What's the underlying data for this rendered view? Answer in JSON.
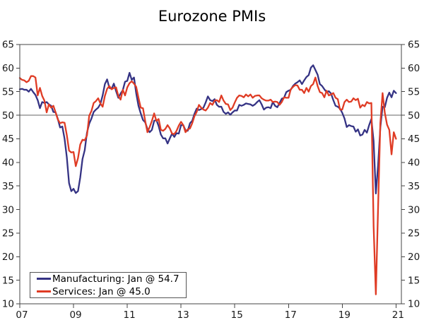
{
  "title": "Eurozone PMIs",
  "chart_data": {
    "type": "line",
    "title": "Eurozone PMIs",
    "xlabel": "",
    "ylabel": "",
    "x_start": "2007-01",
    "x_end": "2021-01",
    "x_frequency": "monthly",
    "x_tick_years": [
      2007,
      2009,
      2011,
      2013,
      2015,
      2017,
      2019,
      2021
    ],
    "x_tick_labels": [
      "07",
      "09",
      "11",
      "13",
      "15",
      "17",
      "19",
      "21"
    ],
    "ylim": [
      10,
      65
    ],
    "y_ticks": [
      10,
      15,
      20,
      25,
      30,
      35,
      40,
      45,
      50,
      55,
      60,
      65
    ],
    "y_axis_sides": "both",
    "grid": "off",
    "reference_line_y": 50,
    "legend_position": "bottom-left",
    "axis_color": "#444444",
    "reference_line_color": "#666666",
    "series": [
      {
        "name": "Manufacturing",
        "label": "Manufacturing: Jan @ 54.7",
        "color": "#353384",
        "values": [
          55.5,
          55.6,
          55.4,
          55.4,
          55.0,
          55.6,
          54.9,
          54.3,
          53.2,
          51.5,
          52.8,
          52.6,
          52.8,
          52.3,
          52.0,
          50.7,
          50.6,
          49.2,
          47.4,
          47.6,
          45.0,
          41.1,
          35.6,
          33.9,
          34.4,
          33.5,
          33.9,
          36.8,
          40.7,
          42.6,
          46.3,
          48.2,
          49.3,
          50.7,
          51.2,
          51.6,
          52.4,
          54.2,
          56.6,
          57.6,
          55.8,
          55.6,
          56.7,
          55.1,
          53.7,
          54.6,
          55.3,
          57.1,
          57.3,
          59.0,
          57.5,
          58.0,
          54.6,
          52.0,
          50.4,
          49.0,
          48.5,
          47.1,
          46.4,
          46.9,
          48.8,
          49.0,
          47.7,
          45.9,
          45.1,
          45.1,
          44.0,
          45.1,
          46.1,
          45.4,
          46.2,
          46.1,
          47.9,
          47.9,
          46.8,
          46.7,
          48.3,
          48.8,
          50.3,
          51.4,
          51.1,
          51.3,
          51.6,
          52.7,
          54.0,
          53.2,
          53.0,
          53.4,
          52.2,
          51.8,
          51.8,
          50.7,
          50.3,
          50.6,
          50.1,
          50.6,
          51.0,
          51.0,
          52.2,
          52.0,
          52.2,
          52.5,
          52.4,
          52.3,
          52.0,
          52.3,
          52.8,
          53.2,
          52.3,
          51.2,
          51.6,
          51.7,
          51.5,
          52.8,
          52.0,
          51.7,
          52.6,
          53.5,
          53.7,
          54.9,
          55.2,
          55.4,
          56.2,
          56.7,
          57.0,
          57.4,
          56.6,
          57.4,
          58.1,
          58.5,
          60.1,
          60.6,
          59.6,
          58.6,
          56.6,
          56.2,
          55.5,
          54.9,
          55.1,
          54.6,
          53.2,
          52.0,
          51.8,
          51.4,
          50.5,
          49.3,
          47.5,
          47.9,
          47.7,
          47.6,
          46.5,
          47.0,
          45.7,
          45.9,
          46.9,
          46.3,
          47.9,
          49.2,
          44.5,
          33.4,
          39.4,
          47.4,
          51.8,
          51.7,
          53.7,
          54.8,
          53.8,
          55.2,
          54.7
        ]
      },
      {
        "name": "Services",
        "label": "Services: Jan @ 45.0",
        "color": "#df3b24",
        "values": [
          57.9,
          57.5,
          57.4,
          57.0,
          57.3,
          58.3,
          58.3,
          58.0,
          54.2,
          55.8,
          54.1,
          53.1,
          50.6,
          52.3,
          51.6,
          52.0,
          50.6,
          49.1,
          48.3,
          48.5,
          48.4,
          45.8,
          42.5,
          42.1,
          42.2,
          39.2,
          40.9,
          43.8,
          44.8,
          44.7,
          45.7,
          49.9,
          50.9,
          52.6,
          53.0,
          53.6,
          52.5,
          51.8,
          54.1,
          55.6,
          56.2,
          55.5,
          55.8,
          55.9,
          54.1,
          53.3,
          55.4,
          54.2,
          55.9,
          56.8,
          57.2,
          56.7,
          56.0,
          53.7,
          51.6,
          51.5,
          48.8,
          46.4,
          47.5,
          48.8,
          50.4,
          48.8,
          49.2,
          46.9,
          46.7,
          47.1,
          47.9,
          47.2,
          46.1,
          46.0,
          46.7,
          47.8,
          48.6,
          47.9,
          46.4,
          47.0,
          47.2,
          48.3,
          49.8,
          50.7,
          52.2,
          51.6,
          51.2,
          51.0,
          51.6,
          52.6,
          52.2,
          53.1,
          53.2,
          52.8,
          54.2,
          53.1,
          52.4,
          52.3,
          51.1,
          51.6,
          52.7,
          53.7,
          54.2,
          54.1,
          53.8,
          54.4,
          54.0,
          54.4,
          53.7,
          54.1,
          54.2,
          54.2,
          53.6,
          53.3,
          53.1,
          53.1,
          53.3,
          52.8,
          52.9,
          52.8,
          52.2,
          52.8,
          53.8,
          53.7,
          53.7,
          55.5,
          56.0,
          56.4,
          56.3,
          55.4,
          55.4,
          54.7,
          55.8,
          55.0,
          56.2,
          56.6,
          58.0,
          56.2,
          54.9,
          54.7,
          53.8,
          55.2,
          54.2,
          54.4,
          54.7,
          53.7,
          53.4,
          51.2,
          51.2,
          52.8,
          53.3,
          52.8,
          52.9,
          53.6,
          53.2,
          53.5,
          51.6,
          52.2,
          51.9,
          52.8,
          52.5,
          52.6,
          26.4,
          12.0,
          30.5,
          48.3,
          54.7,
          50.5,
          48.0,
          46.9,
          41.7,
          46.4,
          45.0
        ]
      }
    ]
  }
}
